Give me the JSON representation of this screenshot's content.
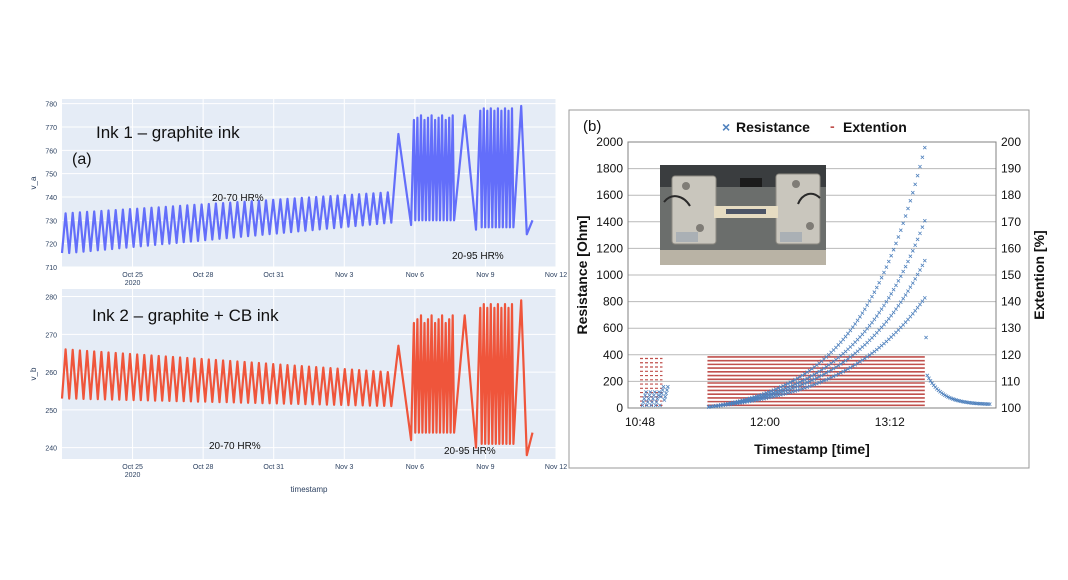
{
  "chart_data": [
    {
      "panel": "(a) top",
      "type": "line",
      "title": "Ink 1 – graphite ink",
      "panel_label": "(a)",
      "xlabel": "timestamp",
      "ylabel": "v_a",
      "color": "#636efa",
      "ylim": [
        710,
        782
      ],
      "yticks": [
        710,
        720,
        730,
        740,
        750,
        760,
        770,
        780
      ],
      "xticks": [
        "Oct 25",
        "Oct 28",
        "Oct 31",
        "Nov 3",
        "Nov 6",
        "Nov 9",
        "Nov 12"
      ],
      "xtick_sub": "2020",
      "annotations": [
        "20-70 HR%",
        "20-95 HR%"
      ],
      "series": [
        {
          "segment": "20-70 HR%",
          "x_start": "Oct 22",
          "x_end": "Nov 5",
          "cycles": 46,
          "min_start": 716,
          "min_end": 729,
          "max_start": 733,
          "max_end": 742
        },
        {
          "segment": "20-95 HR%",
          "x_start": "Nov 5",
          "x_end": "Nov 11",
          "min": 724,
          "max": 779
        }
      ]
    },
    {
      "panel": "(a) bottom",
      "type": "line",
      "title": "Ink 2 – graphite + CB ink",
      "xlabel": "timestamp",
      "ylabel": "v_b",
      "color": "#ef553b",
      "ylim": [
        237,
        282
      ],
      "yticks": [
        240,
        250,
        260,
        270,
        280
      ],
      "xticks": [
        "Oct 25",
        "Oct 28",
        "Oct 31",
        "Nov 3",
        "Nov 6",
        "Nov 9",
        "Nov 12"
      ],
      "xtick_sub": "2020",
      "annotations": [
        "20-70 HR%",
        "20-95 HR%"
      ],
      "series": [
        {
          "segment": "20-70 HR%",
          "x_start": "Oct 22",
          "x_end": "Nov 5",
          "cycles": 46,
          "min_start": 253,
          "min_end": 251,
          "max_start": 266,
          "max_end": 260
        },
        {
          "segment": "20-95 HR%",
          "x_start": "Nov 5",
          "x_end": "Nov 11",
          "min": 238,
          "max": 279
        }
      ]
    },
    {
      "panel": "(b)",
      "type": "scatter",
      "panel_label": "(b)",
      "xlabel": "Timestamp [time]",
      "ylabel": "Resistance [Ohm]",
      "ylabel2": "Extention [%]",
      "xticks": [
        "10:48",
        "12:00",
        "13:12"
      ],
      "ylim": [
        0,
        2000
      ],
      "yticks": [
        0,
        200,
        400,
        600,
        800,
        1000,
        1200,
        1400,
        1600,
        1800,
        2000
      ],
      "ylim2": [
        100,
        200
      ],
      "yticks2": [
        100,
        110,
        120,
        130,
        140,
        150,
        160,
        170,
        180,
        190,
        200
      ],
      "grid": true,
      "legend_position": "top",
      "legend": [
        {
          "name": "Resistance",
          "marker": "×",
          "color": "#4f81bd"
        },
        {
          "name": "Extention",
          "marker": "-",
          "color": "#c0504d"
        }
      ],
      "inset": "photo of the stretching setup with a printed sample clamped between two grips",
      "resistance_peak": 1950,
      "extention_max": 120
    }
  ]
}
